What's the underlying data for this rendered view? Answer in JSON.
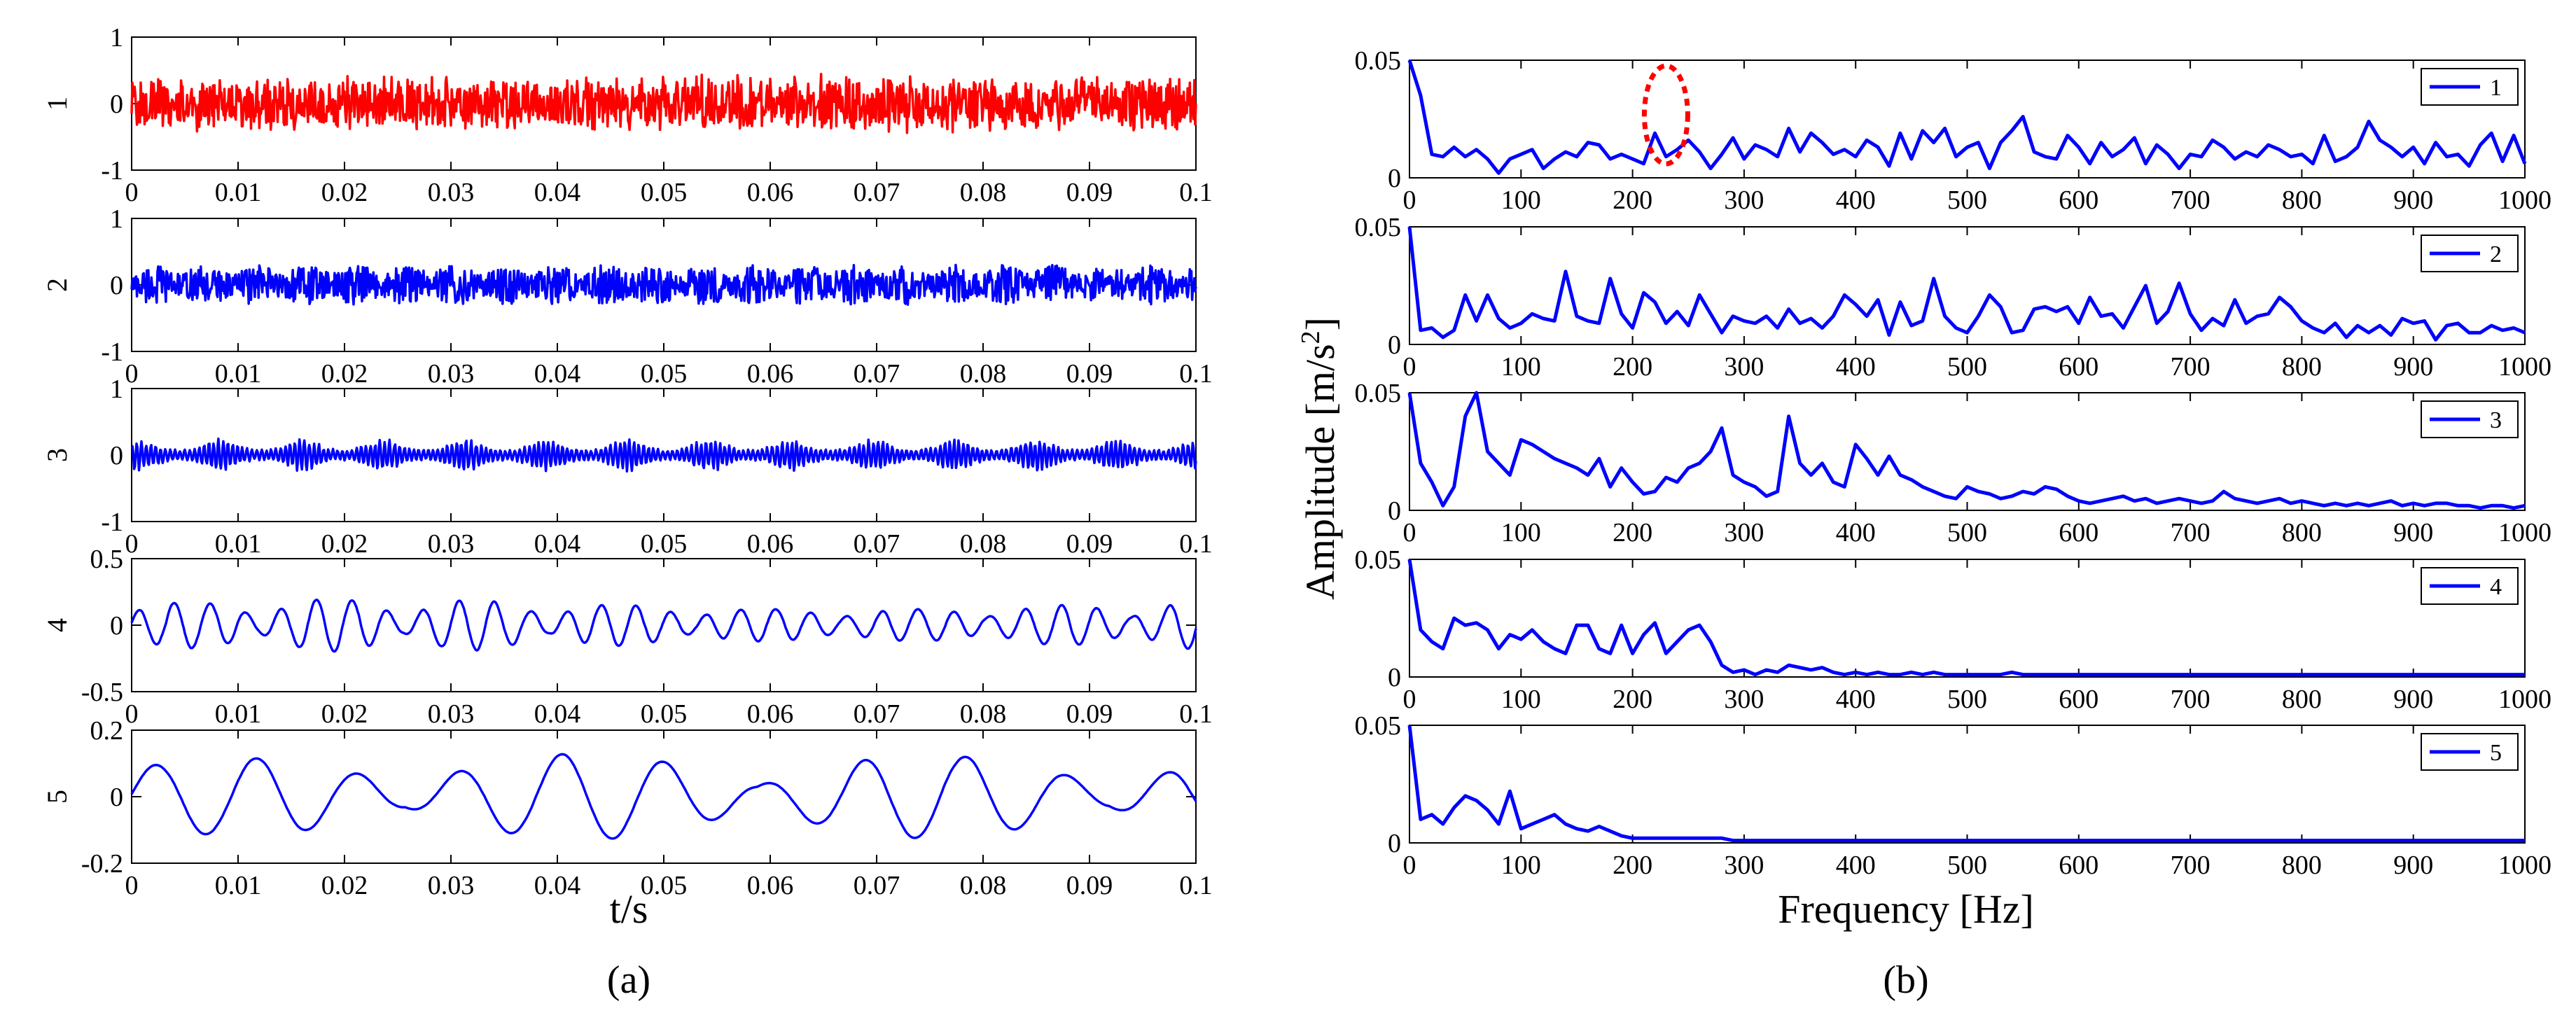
{
  "figure": {
    "panel_a_label": "(a)",
    "panel_b_label": "(b)",
    "left_xlabel": "t/s",
    "right_xlabel": "Frequency [Hz]",
    "right_ylabel_main": "Amplitude [m/s",
    "right_ylabel_exp": "2",
    "right_ylabel_end": "]",
    "highlight_color": "#ff0000",
    "series_color": "#0000ff",
    "first_series_color": "#ff0000"
  },
  "chart_data": [
    {
      "type": "line",
      "panel": "(a)",
      "title": "",
      "xlabel": "t/s",
      "xlim": [
        0,
        0.1
      ],
      "xticks": [
        "0",
        "0.01",
        "0.02",
        "0.03",
        "0.04",
        "0.05",
        "0.06",
        "0.07",
        "0.08",
        "0.09",
        "0.1"
      ],
      "series": [
        {
          "name": "1",
          "color": "#ff0000",
          "ylim": [
            -1,
            1
          ],
          "yticks": [
            "1",
            "0",
            "-1"
          ],
          "amplitude": 0.45,
          "style": "broadband noise"
        },
        {
          "name": "2",
          "color": "#0000ff",
          "ylim": [
            -1,
            1
          ],
          "yticks": [
            "1",
            "0",
            "-1"
          ],
          "amplitude": 0.3,
          "style": "high-frequency noise"
        },
        {
          "name": "3",
          "color": "#0000ff",
          "ylim": [
            -1,
            1
          ],
          "yticks": [
            "1",
            "0",
            "-1"
          ],
          "amplitude": 0.25,
          "style": "bursty oscillation"
        },
        {
          "name": "4",
          "color": "#0000ff",
          "ylim": [
            -0.5,
            0.5
          ],
          "yticks": [
            "0.5",
            "0",
            "-0.5"
          ],
          "amplitude": 0.2,
          "style": "oscillation ~300 Hz"
        },
        {
          "name": "5",
          "color": "#0000ff",
          "ylim": [
            -0.2,
            0.2
          ],
          "yticks": [
            "0.2",
            "0",
            "-0.2"
          ],
          "amplitude": 0.13,
          "style": "oscillation ~100 Hz"
        }
      ]
    },
    {
      "type": "line",
      "panel": "(b)",
      "title": "",
      "xlabel": "Frequency [Hz]",
      "ylabel": "Amplitude [m/s^2]",
      "xlim": [
        0,
        1000
      ],
      "ylim": [
        0,
        0.05
      ],
      "xticks": [
        "0",
        "100",
        "200",
        "300",
        "400",
        "500",
        "600",
        "700",
        "800",
        "900",
        "1000"
      ],
      "yticks": [
        "0.05",
        "0"
      ],
      "freq_step": 10,
      "annotation": {
        "type": "dashed ellipse",
        "center_hz": 230,
        "color": "#ff0000"
      },
      "series": [
        {
          "name": "1",
          "legend": "1",
          "color": "#0000ff",
          "values": [
            0.05,
            0.035,
            0.01,
            0.009,
            0.013,
            0.009,
            0.012,
            0.008,
            0.002,
            0.008,
            0.01,
            0.012,
            0.004,
            0.008,
            0.011,
            0.009,
            0.015,
            0.014,
            0.008,
            0.01,
            0.008,
            0.006,
            0.019,
            0.009,
            0.012,
            0.016,
            0.011,
            0.004,
            0.01,
            0.017,
            0.008,
            0.014,
            0.012,
            0.009,
            0.021,
            0.011,
            0.019,
            0.015,
            0.01,
            0.012,
            0.009,
            0.016,
            0.013,
            0.005,
            0.019,
            0.008,
            0.02,
            0.015,
            0.021,
            0.009,
            0.013,
            0.015,
            0.004,
            0.015,
            0.02,
            0.026,
            0.011,
            0.009,
            0.008,
            0.018,
            0.013,
            0.006,
            0.015,
            0.009,
            0.012,
            0.017,
            0.006,
            0.014,
            0.01,
            0.004,
            0.01,
            0.009,
            0.016,
            0.013,
            0.008,
            0.011,
            0.009,
            0.014,
            0.012,
            0.009,
            0.01,
            0.006,
            0.018,
            0.007,
            0.009,
            0.013,
            0.024,
            0.016,
            0.013,
            0.009,
            0.013,
            0.006,
            0.015,
            0.009,
            0.01,
            0.005,
            0.014,
            0.019,
            0.007,
            0.018,
            0.006
          ]
        },
        {
          "name": "2",
          "legend": "2",
          "color": "#0000ff",
          "values": [
            0.05,
            0.006,
            0.007,
            0.003,
            0.006,
            0.021,
            0.01,
            0.021,
            0.011,
            0.007,
            0.009,
            0.013,
            0.011,
            0.01,
            0.031,
            0.012,
            0.01,
            0.009,
            0.028,
            0.013,
            0.007,
            0.022,
            0.018,
            0.009,
            0.014,
            0.008,
            0.021,
            0.013,
            0.005,
            0.012,
            0.01,
            0.009,
            0.012,
            0.007,
            0.015,
            0.009,
            0.011,
            0.007,
            0.012,
            0.021,
            0.017,
            0.012,
            0.019,
            0.004,
            0.018,
            0.008,
            0.01,
            0.028,
            0.012,
            0.007,
            0.005,
            0.012,
            0.021,
            0.016,
            0.005,
            0.006,
            0.015,
            0.016,
            0.014,
            0.016,
            0.009,
            0.02,
            0.012,
            0.013,
            0.007,
            0.016,
            0.025,
            0.009,
            0.014,
            0.026,
            0.013,
            0.006,
            0.011,
            0.008,
            0.019,
            0.009,
            0.012,
            0.013,
            0.02,
            0.016,
            0.01,
            0.007,
            0.005,
            0.009,
            0.003,
            0.008,
            0.005,
            0.008,
            0.004,
            0.011,
            0.009,
            0.01,
            0.002,
            0.008,
            0.009,
            0.005,
            0.005,
            0.008,
            0.006,
            0.007,
            0.005
          ]
        },
        {
          "name": "3",
          "legend": "3",
          "color": "#0000ff",
          "values": [
            0.05,
            0.02,
            0.012,
            0.002,
            0.01,
            0.04,
            0.05,
            0.025,
            0.02,
            0.015,
            0.03,
            0.028,
            0.025,
            0.022,
            0.02,
            0.018,
            0.015,
            0.022,
            0.01,
            0.018,
            0.012,
            0.007,
            0.008,
            0.014,
            0.012,
            0.018,
            0.02,
            0.025,
            0.035,
            0.015,
            0.012,
            0.01,
            0.006,
            0.008,
            0.04,
            0.02,
            0.015,
            0.02,
            0.012,
            0.01,
            0.028,
            0.022,
            0.015,
            0.023,
            0.015,
            0.013,
            0.01,
            0.008,
            0.006,
            0.005,
            0.01,
            0.008,
            0.007,
            0.005,
            0.006,
            0.008,
            0.007,
            0.01,
            0.009,
            0.006,
            0.004,
            0.003,
            0.004,
            0.005,
            0.006,
            0.004,
            0.005,
            0.003,
            0.004,
            0.005,
            0.004,
            0.003,
            0.004,
            0.008,
            0.005,
            0.004,
            0.003,
            0.004,
            0.005,
            0.003,
            0.004,
            0.003,
            0.002,
            0.003,
            0.002,
            0.003,
            0.002,
            0.003,
            0.004,
            0.002,
            0.003,
            0.002,
            0.003,
            0.003,
            0.002,
            0.002,
            0.001,
            0.002,
            0.002,
            0.001,
            0.002
          ]
        },
        {
          "name": "4",
          "legend": "4",
          "color": "#0000ff",
          "values": [
            0.05,
            0.02,
            0.015,
            0.012,
            0.025,
            0.022,
            0.023,
            0.02,
            0.012,
            0.018,
            0.016,
            0.02,
            0.015,
            0.012,
            0.01,
            0.022,
            0.022,
            0.012,
            0.01,
            0.022,
            0.01,
            0.018,
            0.023,
            0.01,
            0.015,
            0.02,
            0.022,
            0.015,
            0.005,
            0.002,
            0.003,
            0.001,
            0.003,
            0.002,
            0.005,
            0.004,
            0.003,
            0.004,
            0.002,
            0.001,
            0.002,
            0.001,
            0.002,
            0.001,
            0.001,
            0.002,
            0.001,
            0.002,
            0.001,
            0.001,
            0.001,
            0.001,
            0.001,
            0.001,
            0.002,
            0.001,
            0.001,
            0.001,
            0.001,
            0.001,
            0.001,
            0.001,
            0.001,
            0.001,
            0.001,
            0.001,
            0.001,
            0.001,
            0.001,
            0.001,
            0.001,
            0.001,
            0.001,
            0.001,
            0.001,
            0.001,
            0.001,
            0.001,
            0.001,
            0.001,
            0.001,
            0.001,
            0.001,
            0.001,
            0.001,
            0.001,
            0.001,
            0.001,
            0.001,
            0.001,
            0.001,
            0.001,
            0.001,
            0.001,
            0.001,
            0.001,
            0.001,
            0.001,
            0.001,
            0.001,
            0.001
          ]
        },
        {
          "name": "5",
          "legend": "5",
          "color": "#0000ff",
          "values": [
            0.05,
            0.01,
            0.012,
            0.008,
            0.015,
            0.02,
            0.018,
            0.014,
            0.008,
            0.022,
            0.006,
            0.008,
            0.01,
            0.012,
            0.008,
            0.006,
            0.005,
            0.007,
            0.005,
            0.003,
            0.002,
            0.002,
            0.002,
            0.002,
            0.002,
            0.002,
            0.002,
            0.002,
            0.002,
            0.001,
            0.001,
            0.001,
            0.001,
            0.001,
            0.001,
            0.001,
            0.001,
            0.001,
            0.001,
            0.001,
            0.001,
            0.001,
            0.001,
            0.001,
            0.001,
            0.001,
            0.001,
            0.001,
            0.001,
            0.001,
            0.001,
            0.001,
            0.001,
            0.001,
            0.001,
            0.001,
            0.001,
            0.001,
            0.001,
            0.001,
            0.001,
            0.001,
            0.001,
            0.001,
            0.001,
            0.001,
            0.001,
            0.001,
            0.001,
            0.001,
            0.001,
            0.001,
            0.001,
            0.001,
            0.001,
            0.001,
            0.001,
            0.001,
            0.001,
            0.001,
            0.001,
            0.001,
            0.001,
            0.001,
            0.001,
            0.001,
            0.001,
            0.001,
            0.001,
            0.001,
            0.001,
            0.001,
            0.001,
            0.001,
            0.001,
            0.001,
            0.001,
            0.001,
            0.001,
            0.001,
            0.001
          ]
        }
      ]
    }
  ]
}
